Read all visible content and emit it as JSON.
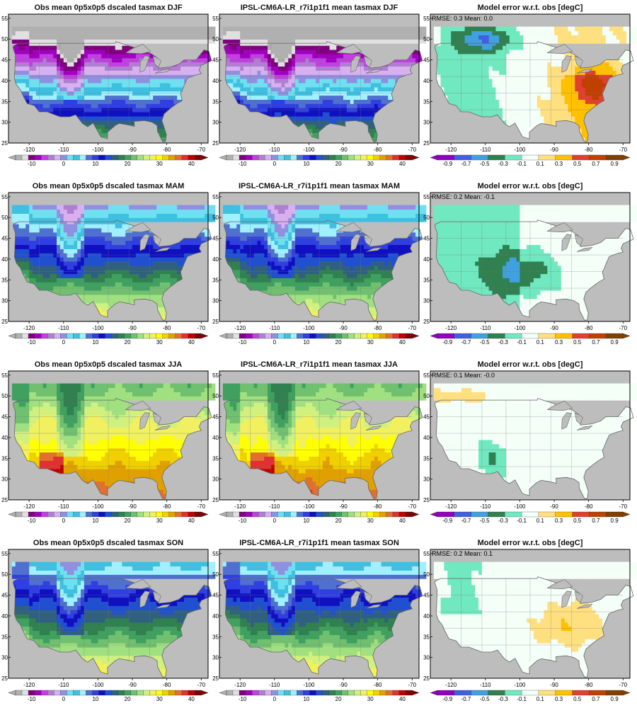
{
  "rows": [
    {
      "season": "DJF",
      "panels": [
        {
          "title": "Obs mean 0p5x0p5 dscaled tasmax DJF",
          "kind": "obs"
        },
        {
          "title": "IPSL-CM6A-LR_r7i1p1f1 mean tasmax DJF",
          "kind": "model"
        },
        {
          "title": "Model error w.r.t. obs [degC]",
          "kind": "error",
          "stats": "RMSE: 0.3  Mean: 0.0"
        }
      ]
    },
    {
      "season": "MAM",
      "panels": [
        {
          "title": "Obs mean 0p5x0p5 dscaled tasmax MAM",
          "kind": "obs"
        },
        {
          "title": "IPSL-CM6A-LR_r7i1p1f1 mean tasmax MAM",
          "kind": "model"
        },
        {
          "title": "Model error w.r.t. obs [degC]",
          "kind": "error",
          "stats": "RMSE: 0.2  Mean: -0.1"
        }
      ]
    },
    {
      "season": "JJA",
      "panels": [
        {
          "title": "Obs mean 0p5x0p5 dscaled tasmax JJA",
          "kind": "obs"
        },
        {
          "title": "IPSL-CM6A-LR_r7i1p1f1 mean tasmax JJA",
          "kind": "model"
        },
        {
          "title": "Model error w.r.t. obs [degC]",
          "kind": "error",
          "stats": "RMSE: 0.1  Mean: -0.0"
        }
      ]
    },
    {
      "season": "SON",
      "panels": [
        {
          "title": "Obs mean 0p5x0p5 dscaled tasmax SON",
          "kind": "obs"
        },
        {
          "title": "IPSL-CM6A-LR_r7i1p1f1 mean tasmax SON",
          "kind": "model"
        },
        {
          "title": "Model error w.r.t. obs [degC]",
          "kind": "error",
          "stats": "RMSE: 0.2  Mean: 0.1"
        }
      ]
    }
  ],
  "axes": {
    "lon_ticks": [
      "-120",
      "-110",
      "-100",
      "-90",
      "-80",
      "-70"
    ],
    "lat_ticks": [
      "55",
      "50",
      "45",
      "40",
      "35",
      "30",
      "25"
    ]
  },
  "temp_colorbar": {
    "labels": [
      "-10",
      "0",
      "10",
      "20",
      "30",
      "40"
    ],
    "colors": [
      "#b0b0b0",
      "#e0e0e0",
      "#800080",
      "#a000c0",
      "#c040e0",
      "#b080d0",
      "#d8b0f0",
      "#9090e0",
      "#70e0f0",
      "#40c0e0",
      "#a0f0ff",
      "#5070d0",
      "#3040e0",
      "#1010c0",
      "#2050d0",
      "#306080",
      "#308050",
      "#40a060",
      "#70c070",
      "#a0e080",
      "#d0f080",
      "#f0f060",
      "#ffff00",
      "#f0d000",
      "#e0a000",
      "#e07030",
      "#e03030",
      "#c00000",
      "#800000"
    ]
  },
  "error_colorbar": {
    "labels": [
      "-0.9",
      "-0.7",
      "-0.5",
      "-0.3",
      "-0.1",
      "0.1",
      "0.3",
      "0.5",
      "0.7",
      "0.9"
    ],
    "colors": [
      "#9000c0",
      "#4060e0",
      "#40a0e0",
      "#308050",
      "#70e8c0",
      "#f4fff8",
      "#ffe080",
      "#ffc000",
      "#e04030",
      "#c04000",
      "#804000"
    ]
  }
}
